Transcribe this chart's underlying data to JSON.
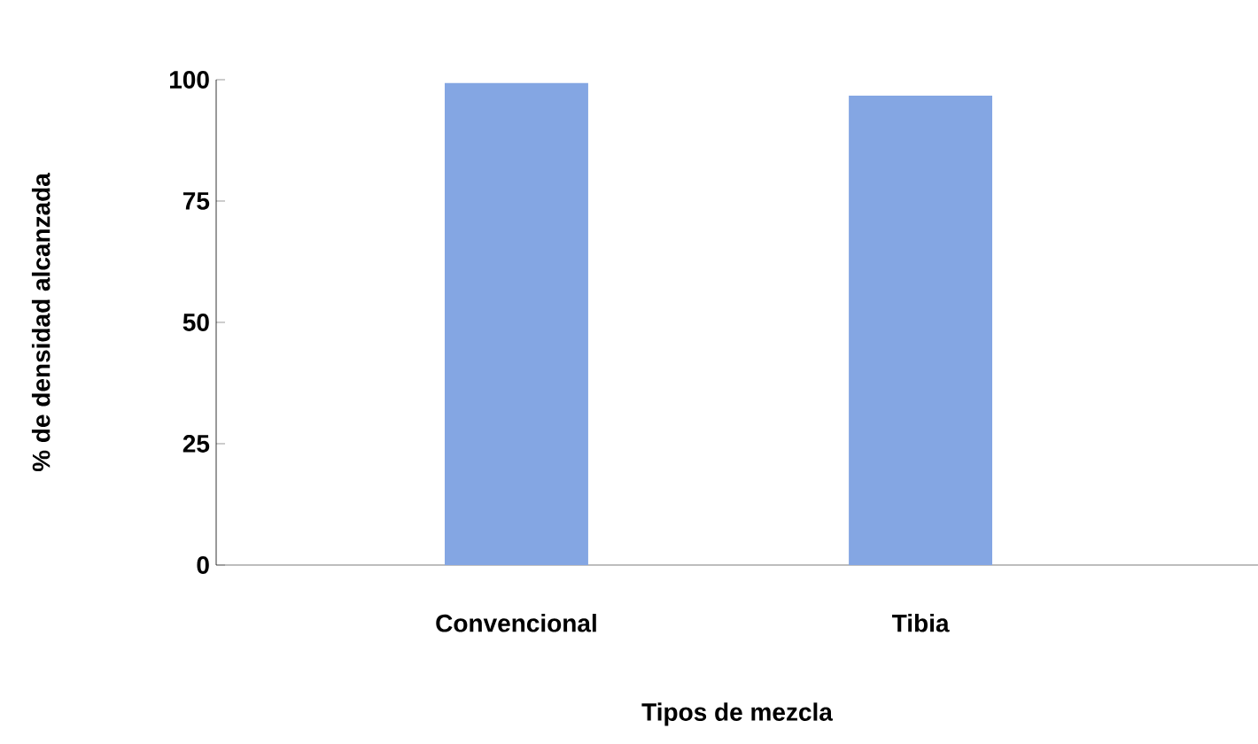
{
  "chart_data": {
    "type": "bar",
    "xlabel": "Tipos de mezcla",
    "ylabel": "% de densidad alcanzada",
    "categories": [
      "Convencional",
      "Tibia"
    ],
    "values": [
      99.3,
      96.7
    ],
    "color": "#84a6e3",
    "ylim": [
      0,
      100
    ],
    "yticks": [
      0,
      25,
      50,
      75,
      100
    ]
  }
}
